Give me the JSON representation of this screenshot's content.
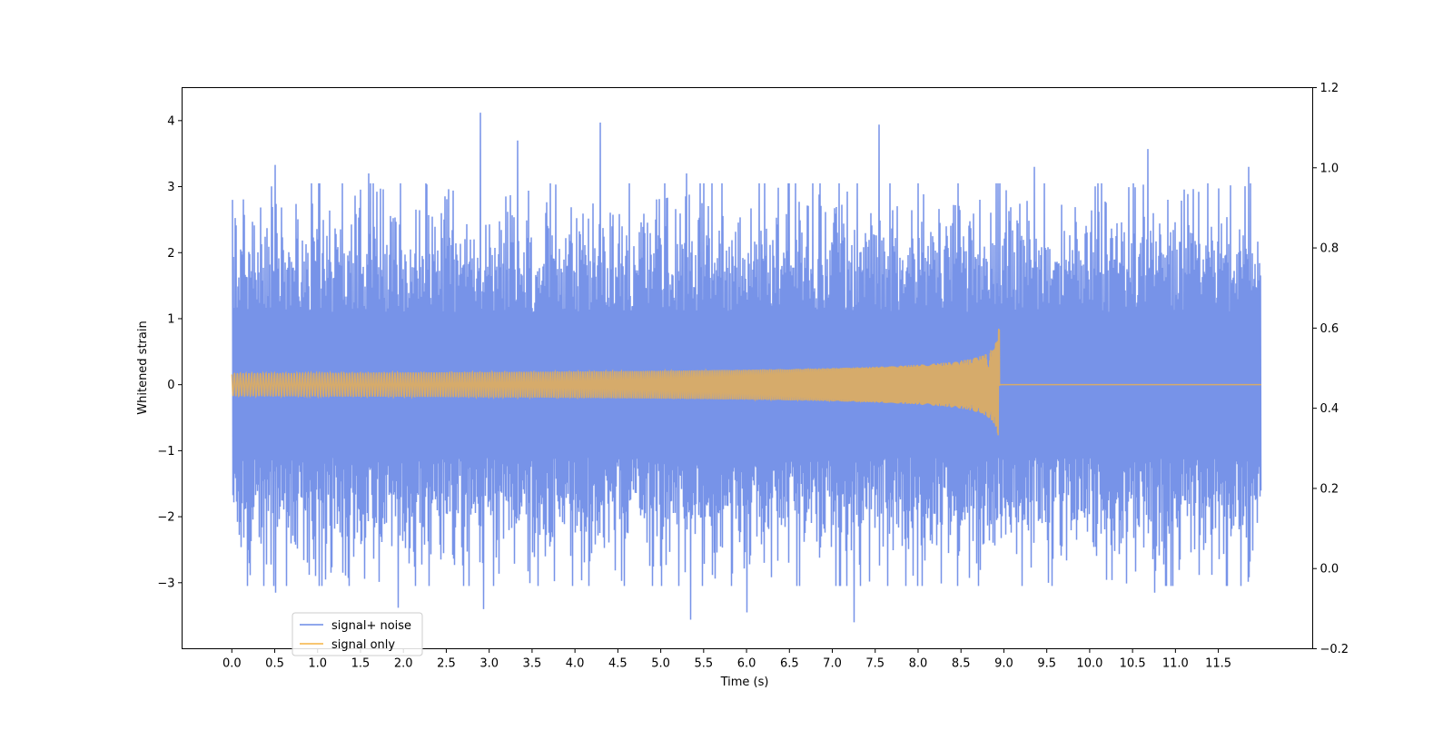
{
  "chart_data": {
    "type": "line",
    "xlabel": "Time (s)",
    "ylabel": "Whitened strain",
    "xlim": [
      -0.58,
      12.6
    ],
    "ylim": [
      -4.0,
      4.5
    ],
    "y2lim": [
      -0.2,
      1.2
    ],
    "x_ticks": [
      0.0,
      0.5,
      1.0,
      1.5,
      2.0,
      2.5,
      3.0,
      3.5,
      4.0,
      4.5,
      5.0,
      5.5,
      6.0,
      6.5,
      7.0,
      7.5,
      8.0,
      8.5,
      9.0,
      9.5,
      10.0,
      10.5,
      11.0,
      11.5
    ],
    "x_tick_labels": [
      "0.0",
      "0.5",
      "1.0",
      "1.5",
      "2.0",
      "2.5",
      "3.0",
      "3.5",
      "4.0",
      "4.5",
      "5.0",
      "5.5",
      "6.0",
      "6.5",
      "7.0",
      "7.5",
      "8.0",
      "8.5",
      "9.0",
      "9.5",
      "10.0",
      "10.5",
      "11.0",
      "11.5"
    ],
    "y_ticks": [
      -3,
      -2,
      -1,
      0,
      1,
      2,
      3,
      4
    ],
    "y_tick_labels": [
      "−3",
      "−2",
      "−1",
      "0",
      "1",
      "2",
      "3",
      "4"
    ],
    "y2_ticks": [
      -0.2,
      0.0,
      0.2,
      0.4,
      0.6,
      0.8,
      1.0,
      1.2
    ],
    "y2_tick_labels": [
      "−0.2",
      "0.0",
      "0.2",
      "0.4",
      "0.6",
      "0.8",
      "1.0",
      "1.2"
    ],
    "grid": false,
    "legend_position": "lower-left",
    "series": [
      {
        "name": "signal+ noise",
        "color": "#6b8ae6",
        "kind": "noise",
        "x_start": 0.0,
        "x_end": 12.0,
        "typical_range": [
          -1.5,
          1.5
        ],
        "peaks": [
          {
            "x": 0.01,
            "y": 2.8
          },
          {
            "x": 0.5,
            "y": 3.33
          },
          {
            "x": 1.6,
            "y": 3.2
          },
          {
            "x": 2.9,
            "y": 4.12
          },
          {
            "x": 3.33,
            "y": 3.7
          },
          {
            "x": 4.3,
            "y": 3.97
          },
          {
            "x": 5.3,
            "y": 3.2
          },
          {
            "x": 7.55,
            "y": 3.94
          },
          {
            "x": 9.35,
            "y": 3.3
          },
          {
            "x": 10.68,
            "y": 3.57
          },
          {
            "x": 11.85,
            "y": 3.3
          }
        ],
        "troughs": [
          {
            "x": 0.5,
            "y": -3.15
          },
          {
            "x": 1.93,
            "y": -3.38
          },
          {
            "x": 2.93,
            "y": -3.4
          },
          {
            "x": 5.34,
            "y": -3.56
          },
          {
            "x": 6.0,
            "y": -3.45
          },
          {
            "x": 7.25,
            "y": -3.6
          },
          {
            "x": 10.75,
            "y": -3.15
          }
        ]
      },
      {
        "name": "signal only",
        "color": "#f5b342",
        "kind": "chirp",
        "x_start": 0.0,
        "x_end": 12.0,
        "merger_x": 8.95,
        "peak_amplitude": 1.0
      }
    ]
  }
}
